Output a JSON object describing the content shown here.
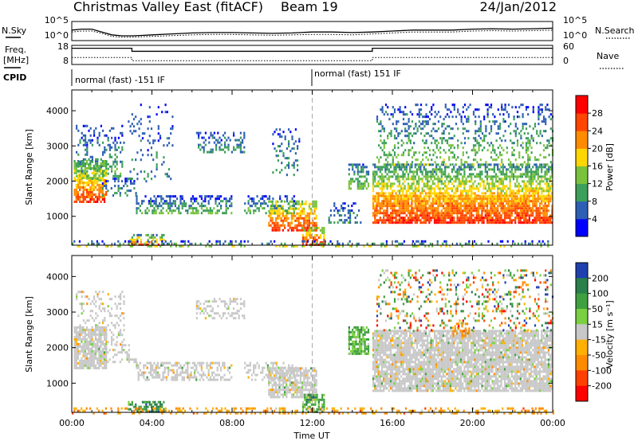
{
  "header": {
    "title": "Christmas Valley East (fitACF)",
    "beam": "Beam 19",
    "date": "24/Jan/2012"
  },
  "side_labels": {
    "nsky": "N.Sky",
    "freq_line1": "Freq.",
    "freq_line2": "[MHz]",
    "cpid": "CPID",
    "nsearch": "N.Search",
    "nave": "Nave"
  },
  "cpid_segments": [
    "normal (fast) -151 IF",
    "normal (fast) 151 IF"
  ],
  "chart_data": [
    {
      "type": "line",
      "name": "noise",
      "ylabel": "N.Sky",
      "ylabel_right": "N.Search",
      "yticks_left": [
        "10^5",
        "10^0"
      ],
      "yticks_right": [
        "10^5",
        "10^0"
      ],
      "x_hours": [
        0,
        0.5,
        1,
        1.5,
        2,
        2.5,
        3,
        3.5,
        4,
        5,
        6,
        7,
        8,
        9,
        10,
        11,
        12,
        13,
        14,
        15,
        16,
        17,
        18,
        19,
        20,
        21,
        22,
        23,
        24
      ],
      "series": [
        {
          "values": [
            0.55,
            0.6,
            0.6,
            0.45,
            0.3,
            0.25,
            0.25,
            0.27,
            0.3,
            0.35,
            0.4,
            0.42,
            0.42,
            0.4,
            0.38,
            0.4,
            0.45,
            0.45,
            0.42,
            0.45,
            0.5,
            0.55,
            0.55,
            0.55,
            0.6,
            0.62,
            0.6,
            0.62,
            0.65
          ]
        },
        {
          "values": [
            0.45,
            0.5,
            0.5,
            0.38,
            0.22,
            0.18,
            0.18,
            0.2,
            0.22,
            0.26,
            0.3,
            0.32,
            0.32,
            0.3,
            0.28,
            0.3,
            0.32,
            0.32,
            0.3,
            0.35,
            0.4,
            0.45,
            0.45,
            0.45,
            0.5,
            0.52,
            0.5,
            0.52,
            0.55
          ]
        }
      ]
    },
    {
      "type": "line",
      "name": "frequency",
      "ylabel": "Freq. [MHz]",
      "ylabel_right": "Nave",
      "yticks_left": [
        "18",
        "8"
      ],
      "yticks_right": [
        "60",
        "0"
      ],
      "freq_steps": [
        [
          0,
          3.0,
          16.5
        ],
        [
          3.0,
          15.0,
          14.9
        ],
        [
          15.0,
          24,
          16.5
        ]
      ],
      "nave_steps": [
        [
          0,
          3.0,
          22
        ],
        [
          3.0,
          15.0,
          12
        ],
        [
          15.0,
          24,
          22
        ]
      ]
    },
    {
      "type": "heatmap",
      "name": "power",
      "title": "",
      "xlabel": "",
      "ylabel": "Slant Range [km]",
      "yticks": [
        "1000",
        "2000",
        "3000",
        "4000"
      ],
      "ylim": [
        180,
        4590
      ],
      "xlim": [
        0,
        24
      ],
      "colorbar_label": "Power [dB]",
      "colorbar_ticks": [
        "4",
        "8",
        "12",
        "16",
        "20",
        "24",
        "28"
      ],
      "colors": [
        "#0000ff",
        "#2d5fb4",
        "#3c9f5a",
        "#7ac23c",
        "#ffd700",
        "#ff8c00",
        "#ff4500",
        "#ff0000"
      ],
      "regions": [
        {
          "h0": 0.1,
          "h1": 1.7,
          "r0": 1400,
          "r1": 2600,
          "v0": 10,
          "v1": 28,
          "d": 0.75
        },
        {
          "h0": 0.2,
          "h1": 2.6,
          "r0": 2100,
          "r1": 3600,
          "v0": 4,
          "v1": 12,
          "d": 0.25
        },
        {
          "h0": 1.5,
          "h1": 3.2,
          "r0": 1600,
          "r1": 2100,
          "v0": 4,
          "v1": 10,
          "d": 0.3
        },
        {
          "h0": 2.8,
          "h1": 4.6,
          "r0": 180,
          "r1": 500,
          "v0": 10,
          "v1": 28,
          "d": 0.5
        },
        {
          "h0": 3.2,
          "h1": 8.0,
          "r0": 1100,
          "r1": 1600,
          "v0": 4,
          "v1": 12,
          "d": 0.5
        },
        {
          "h0": 2.8,
          "h1": 5.0,
          "r0": 2000,
          "r1": 4200,
          "v0": 4,
          "v1": 8,
          "d": 0.12
        },
        {
          "h0": 6.2,
          "h1": 8.6,
          "r0": 2800,
          "r1": 3400,
          "v0": 4,
          "v1": 10,
          "d": 0.35
        },
        {
          "h0": 9.8,
          "h1": 12.2,
          "r0": 600,
          "r1": 1450,
          "v0": 14,
          "v1": 28,
          "d": 0.65
        },
        {
          "h0": 8.6,
          "h1": 11.2,
          "r0": 1100,
          "r1": 1600,
          "v0": 4,
          "v1": 12,
          "d": 0.35
        },
        {
          "h0": 11.5,
          "h1": 12.6,
          "r0": 180,
          "r1": 700,
          "v0": 14,
          "v1": 28,
          "d": 0.6
        },
        {
          "h0": 10.0,
          "h1": 11.4,
          "r0": 2200,
          "r1": 3500,
          "v0": 4,
          "v1": 10,
          "d": 0.2
        },
        {
          "h0": 13.8,
          "h1": 14.8,
          "r0": 1800,
          "r1": 2500,
          "v0": 6,
          "v1": 14,
          "d": 0.55
        },
        {
          "h0": 12.8,
          "h1": 14.4,
          "r0": 800,
          "r1": 1400,
          "v0": 4,
          "v1": 10,
          "d": 0.3
        },
        {
          "h0": 15.0,
          "h1": 24.0,
          "r0": 800,
          "r1": 1600,
          "v0": 20,
          "v1": 28,
          "d": 0.85
        },
        {
          "h0": 15.0,
          "h1": 24.0,
          "r0": 1600,
          "r1": 2500,
          "v0": 8,
          "v1": 20,
          "d": 0.6
        },
        {
          "h0": 15.2,
          "h1": 24.0,
          "r0": 2500,
          "r1": 4200,
          "v0": 4,
          "v1": 14,
          "d": 0.25
        },
        {
          "h0": 0.0,
          "h1": 24.0,
          "r0": 180,
          "r1": 320,
          "v0": 4,
          "v1": 16,
          "d": 0.25
        }
      ]
    },
    {
      "type": "heatmap",
      "name": "velocity",
      "title": "",
      "xlabel": "Time UT",
      "ylabel": "Slant Range [km]",
      "yticks": [
        "1000",
        "2000",
        "3000",
        "4000"
      ],
      "ylim": [
        180,
        4590
      ],
      "xlim": [
        0,
        24
      ],
      "xticks": [
        "00:00",
        "04:00",
        "08:00",
        "12:00",
        "16:00",
        "20:00",
        "00:00"
      ],
      "colorbar_label": "Velocity [m s⁻¹]",
      "colorbar_ticks": [
        "200",
        "100",
        "50",
        "15",
        "-15",
        "-50",
        "-100",
        "-200"
      ],
      "colors": [
        "#2040b0",
        "#2a7f4a",
        "#40a040",
        "#7ad040",
        "#c8c8c8",
        "#ffb000",
        "#ff8c00",
        "#ff4000",
        "#ff0000"
      ],
      "regions": [
        {
          "h0": 0.1,
          "h1": 1.7,
          "r0": 1400,
          "r1": 2600,
          "v0": 4,
          "v1": 4,
          "d": 0.85
        },
        {
          "h0": 0.2,
          "h1": 2.6,
          "r0": 2100,
          "r1": 3600,
          "v0": 4,
          "v1": 4,
          "d": 0.2
        },
        {
          "h0": 1.5,
          "h1": 3.2,
          "r0": 1600,
          "r1": 2100,
          "v0": 4,
          "v1": 4,
          "d": 0.3
        },
        {
          "h0": 2.8,
          "h1": 4.6,
          "r0": 180,
          "r1": 500,
          "v0": 1,
          "v1": 2,
          "d": 0.6
        },
        {
          "h0": 3.2,
          "h1": 8.0,
          "r0": 1100,
          "r1": 1600,
          "v0": 4,
          "v1": 4,
          "d": 0.5
        },
        {
          "h0": 6.2,
          "h1": 8.6,
          "r0": 2800,
          "r1": 3400,
          "v0": 4,
          "v1": 4,
          "d": 0.35
        },
        {
          "h0": 9.8,
          "h1": 12.2,
          "r0": 600,
          "r1": 1450,
          "v0": 4,
          "v1": 4,
          "d": 0.75
        },
        {
          "h0": 8.6,
          "h1": 11.2,
          "r0": 1100,
          "r1": 1600,
          "v0": 4,
          "v1": 4,
          "d": 0.35
        },
        {
          "h0": 11.5,
          "h1": 12.6,
          "r0": 180,
          "r1": 700,
          "v0": 1,
          "v1": 3,
          "d": 0.6
        },
        {
          "h0": 0.0,
          "h1": 24.0,
          "r0": 180,
          "r1": 320,
          "v0": 5,
          "v1": 6,
          "d": 0.3
        },
        {
          "h0": 13.8,
          "h1": 14.8,
          "r0": 1800,
          "r1": 2600,
          "v0": 2,
          "v1": 3,
          "d": 0.75
        },
        {
          "h0": 15.0,
          "h1": 24.0,
          "r0": 800,
          "r1": 2500,
          "v0": 4,
          "v1": 4,
          "d": 0.85
        },
        {
          "h0": 15.2,
          "h1": 24.0,
          "r0": 2500,
          "r1": 4200,
          "v0": 0,
          "v1": 8,
          "d": 0.2
        },
        {
          "h0": 19.0,
          "h1": 19.8,
          "r0": 2300,
          "r1": 2700,
          "v0": 6,
          "v1": 6,
          "d": 0.5
        }
      ]
    }
  ]
}
